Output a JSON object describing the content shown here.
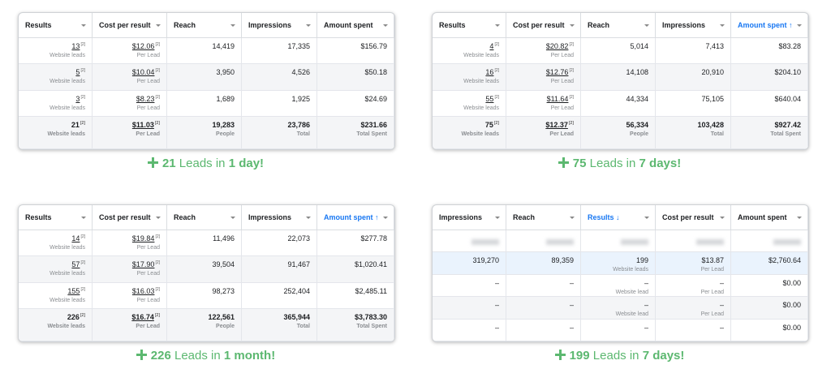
{
  "panels": [
    {
      "headers": [
        {
          "text": "Results"
        },
        {
          "text": "Cost per result"
        },
        {
          "text": "Reach"
        },
        {
          "text": "Impressions"
        },
        {
          "text": "Amount spent"
        }
      ],
      "rows": [
        {
          "cells": [
            {
              "t": "13",
              "n": "[2]",
              "s": "Website leads"
            },
            {
              "t": "$12.06",
              "n": "[2]",
              "s": "Per Lead"
            },
            "14,419",
            "17,335",
            "$156.79"
          ]
        },
        {
          "cells": [
            {
              "t": "5",
              "n": "[2]",
              "s": "Website leads"
            },
            {
              "t": "$10.04",
              "n": "[2]",
              "s": "Per Lead"
            },
            "3,950",
            "4,526",
            "$50.18"
          ]
        },
        {
          "cells": [
            {
              "t": "3",
              "n": "[2]",
              "s": "Website leads"
            },
            {
              "t": "$8.23",
              "n": "[2]",
              "s": "Per Lead"
            },
            "1,689",
            "1,925",
            "$24.69"
          ]
        },
        {
          "total": true,
          "cells": [
            {
              "t": "21",
              "n": "[2]",
              "s": "Website leads"
            },
            {
              "t": "$11.03",
              "n": "[2]",
              "s": "Per Lead"
            },
            {
              "t": "19,283",
              "s": "People"
            },
            {
              "t": "23,786",
              "s": "Total"
            },
            {
              "t": "$231.66",
              "s": "Total Spent"
            }
          ]
        }
      ],
      "caption": {
        "count": "21",
        "middle": "Leads in",
        "period": "1 day!"
      }
    },
    {
      "headers": [
        {
          "text": "Results"
        },
        {
          "text": "Cost per result"
        },
        {
          "text": "Reach"
        },
        {
          "text": "Impressions"
        },
        {
          "text": "Amount spent ↑",
          "color": "#1877f2"
        }
      ],
      "rows": [
        {
          "cells": [
            {
              "t": "4",
              "n": "[2]",
              "s": "Website leads"
            },
            {
              "t": "$20.82",
              "n": "[2]",
              "s": "Per Lead"
            },
            "5,014",
            "7,413",
            "$83.28"
          ]
        },
        {
          "cells": [
            {
              "t": "16",
              "n": "[2]",
              "s": "Website leads"
            },
            {
              "t": "$12.76",
              "n": "[2]",
              "s": "Per Lead"
            },
            "14,108",
            "20,910",
            "$204.10"
          ]
        },
        {
          "cells": [
            {
              "t": "55",
              "n": "[2]",
              "s": "Website leads"
            },
            {
              "t": "$11.64",
              "n": "[2]",
              "s": "Per Lead"
            },
            "44,334",
            "75,105",
            "$640.04"
          ]
        },
        {
          "total": true,
          "cells": [
            {
              "t": "75",
              "n": "[2]",
              "s": "Website leads"
            },
            {
              "t": "$12.37",
              "n": "[2]",
              "s": "Per Lead"
            },
            {
              "t": "56,334",
              "s": "People"
            },
            {
              "t": "103,428",
              "s": "Total"
            },
            {
              "t": "$927.42",
              "s": "Total Spent"
            }
          ]
        }
      ],
      "caption": {
        "count": "75",
        "middle": "Leads in",
        "period": "7 days!"
      }
    },
    {
      "headers": [
        {
          "text": "Results"
        },
        {
          "text": "Cost per result"
        },
        {
          "text": "Reach"
        },
        {
          "text": "Impressions"
        },
        {
          "text": "Amount spent ↑",
          "color": "#1877f2"
        }
      ],
      "rows": [
        {
          "cells": [
            {
              "t": "14",
              "n": "[2]",
              "s": "Website leads"
            },
            {
              "t": "$19.84",
              "n": "[2]",
              "s": "Per Lead"
            },
            "11,496",
            "22,073",
            "$277.78"
          ]
        },
        {
          "cells": [
            {
              "t": "57",
              "n": "[2]",
              "s": "Website leads"
            },
            {
              "t": "$17.90",
              "n": "[2]",
              "s": "Per Lead"
            },
            "39,504",
            "91,467",
            "$1,020.41"
          ]
        },
        {
          "cells": [
            {
              "t": "155",
              "n": "[2]",
              "s": "Website leads"
            },
            {
              "t": "$16.03",
              "n": "[2]",
              "s": "Per Lead"
            },
            "98,273",
            "252,404",
            "$2,485.11"
          ]
        },
        {
          "total": true,
          "cells": [
            {
              "t": "226",
              "n": "[2]",
              "s": "Website leads"
            },
            {
              "t": "$16.74",
              "n": "[2]",
              "s": "Per Lead"
            },
            {
              "t": "122,561",
              "s": "People"
            },
            {
              "t": "365,944",
              "s": "Total"
            },
            {
              "t": "$3,783.30",
              "s": "Total Spent"
            }
          ]
        }
      ],
      "caption": {
        "count": "226",
        "middle": "Leads in",
        "period": "1 month!"
      }
    },
    {
      "headers": [
        {
          "text": "Impressions"
        },
        {
          "text": "Reach"
        },
        {
          "text": "Results ↓",
          "color": "#1877f2"
        },
        {
          "text": "Cost per result"
        },
        {
          "text": "Amount spent"
        }
      ],
      "rows": [
        {
          "blurred": true,
          "cells": []
        },
        {
          "highlight": true,
          "cells": [
            "319,270",
            "89,359",
            {
              "t": "199",
              "s": "Website leads"
            },
            {
              "t": "$13.87",
              "s": "Per Lead"
            },
            "$2,760.64"
          ]
        },
        {
          "cells": [
            "–",
            "–",
            {
              "t": "–",
              "s": "Website lead"
            },
            {
              "t": "–",
              "s": "Per Lead"
            },
            "$0.00"
          ]
        },
        {
          "cells": [
            "–",
            "–",
            {
              "t": "–",
              "s": "Website lead"
            },
            {
              "t": "–",
              "s": "Per Lead"
            },
            "$0.00"
          ]
        },
        {
          "cells": [
            "–",
            "–",
            "–",
            "–",
            "$0.00"
          ]
        }
      ],
      "caption": {
        "count": "199",
        "middle": "Leads in",
        "period": "7 days!"
      }
    }
  ]
}
